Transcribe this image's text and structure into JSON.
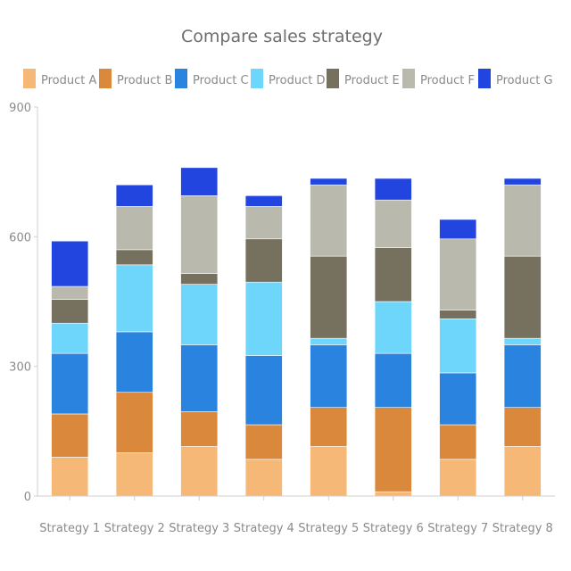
{
  "chart_data": {
    "type": "bar",
    "stacked": true,
    "title": "Compare sales strategy",
    "xlabel": "",
    "ylabel": "",
    "ylim": [
      0,
      900
    ],
    "yticks": [
      0,
      300,
      600,
      900
    ],
    "grid": false,
    "legend_position": "top",
    "categories": [
      "Strategy 1",
      "Strategy 2",
      "Strategy 3",
      "Strategy 4",
      "Strategy 5",
      "Strategy 6",
      "Strategy 7",
      "Strategy 8"
    ],
    "series": [
      {
        "name": "Product A",
        "color": "#f5b877",
        "values": [
          90,
          100,
          115,
          85,
          115,
          10,
          85,
          115
        ]
      },
      {
        "name": "Product B",
        "color": "#d9883c",
        "values": [
          100,
          140,
          80,
          80,
          90,
          195,
          80,
          90
        ]
      },
      {
        "name": "Product C",
        "color": "#2b83e0",
        "values": [
          140,
          140,
          155,
          160,
          145,
          125,
          120,
          145
        ]
      },
      {
        "name": "Product D",
        "color": "#6fd6fb",
        "values": [
          70,
          155,
          140,
          170,
          15,
          120,
          125,
          15
        ]
      },
      {
        "name": "Product E",
        "color": "#76705f",
        "values": [
          55,
          35,
          25,
          100,
          190,
          125,
          20,
          190
        ]
      },
      {
        "name": "Product F",
        "color": "#b9b9ae",
        "values": [
          30,
          100,
          180,
          75,
          165,
          110,
          165,
          165
        ]
      },
      {
        "name": "Product G",
        "color": "#2345df",
        "values": [
          105,
          50,
          65,
          25,
          15,
          50,
          45,
          15
        ]
      }
    ]
  }
}
